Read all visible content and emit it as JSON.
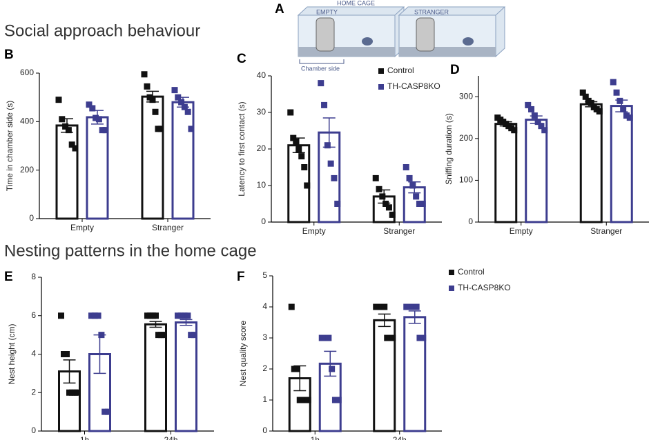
{
  "headings": [
    "Social approach behaviour",
    "Nesting patterns in the home cage"
  ],
  "diagram": {
    "panel": "A",
    "title": "HOME CAGE",
    "left": "EMPTY",
    "right": "STRANGER",
    "caption": "Chamber side"
  },
  "chart_data": [
    {
      "type": "bar",
      "panel": "B",
      "ylabel": "Time in chamber side (s)",
      "categories": [
        "Empty",
        "Stranger"
      ],
      "ylim": [
        0,
        600
      ],
      "yticks": [
        0,
        200,
        400,
        600
      ],
      "series": [
        {
          "color": "#111111",
          "values": [
            384,
            503
          ],
          "errors": [
            28,
            22
          ],
          "points": [
            [
              490,
              410,
              380,
              365,
              305,
              290
            ],
            [
              595,
              545,
              500,
              490,
              440,
              370,
              370
            ]
          ]
        },
        {
          "color": "#3d3d8f",
          "values": [
            418,
            480
          ],
          "errors": [
            28,
            20
          ],
          "points": [
            [
              470,
              455,
              415,
              410,
              365,
              365
            ],
            [
              530,
              500,
              480,
              460,
              440,
              370
            ]
          ]
        }
      ]
    },
    {
      "type": "bar",
      "panel": "C",
      "ylabel": "Latency to first contact (s)",
      "categories": [
        "Empty",
        "Stranger"
      ],
      "ylim": [
        0,
        40
      ],
      "yticks": [
        0,
        10,
        20,
        30,
        40
      ],
      "legend": true,
      "series": [
        {
          "name": "Control",
          "color": "#111111",
          "values": [
            21,
            7
          ],
          "errors": [
            2,
            1.8
          ],
          "points": [
            [
              30,
              23,
              22,
              20,
              18,
              15,
              10
            ],
            [
              12,
              9,
              7,
              5,
              4,
              2
            ]
          ]
        },
        {
          "name": "TH-CASP8KO",
          "color": "#3d3d8f",
          "values": [
            24.5,
            9.5
          ],
          "errors": [
            4,
            1.5
          ],
          "points": [
            [
              38,
              32,
              21,
              16,
              12,
              5
            ],
            [
              15,
              12,
              10,
              7,
              5,
              5
            ]
          ]
        }
      ]
    },
    {
      "type": "bar",
      "panel": "D",
      "ylabel": "Sniffing duration (s)",
      "categories": [
        "Empty",
        "Stranger"
      ],
      "ylim": [
        0,
        350
      ],
      "yticks": [
        0,
        100,
        200,
        300
      ],
      "series": [
        {
          "color": "#111111",
          "values": [
            235,
            282
          ],
          "errors": [
            5,
            6
          ],
          "points": [
            [
              250,
              245,
              240,
              235,
              230,
              225,
              220
            ],
            [
              310,
              300,
              290,
              285,
              275,
              270,
              265
            ]
          ]
        },
        {
          "color": "#3d3d8f",
          "values": [
            245,
            278
          ],
          "errors": [
            9,
            14
          ],
          "points": [
            [
              280,
              270,
              255,
              240,
              230,
              220
            ],
            [
              335,
              310,
              290,
              270,
              255,
              250
            ]
          ]
        }
      ]
    },
    {
      "type": "bar",
      "panel": "E",
      "ylabel": "Nest height (cm)",
      "categories": [
        "1h",
        "24h"
      ],
      "ylim": [
        0,
        8
      ],
      "yticks": [
        0,
        2,
        4,
        6,
        8
      ],
      "series": [
        {
          "color": "#111111",
          "values": [
            3.1,
            5.55
          ],
          "errors": [
            0.6,
            0.15
          ],
          "points": [
            [
              6,
              4,
              4,
              2,
              2,
              2,
              2
            ],
            [
              6,
              6,
              6,
              6,
              5,
              5,
              5
            ]
          ]
        },
        {
          "color": "#3d3d8f",
          "values": [
            4,
            5.65
          ],
          "errors": [
            1,
            0.15
          ],
          "points": [
            [
              6,
              6,
              6,
              5,
              1,
              1
            ],
            [
              6,
              6,
              6,
              6,
              5,
              5
            ]
          ]
        }
      ]
    },
    {
      "type": "bar",
      "panel": "F",
      "ylabel": "Nest  quality score",
      "categories": [
        "1h",
        "24h"
      ],
      "ylim": [
        0,
        5
      ],
      "yticks": [
        0,
        1,
        2,
        3,
        4,
        5
      ],
      "legend": true,
      "series": [
        {
          "name": "Control",
          "color": "#111111",
          "values": [
            1.7,
            3.57
          ],
          "errors": [
            0.4,
            0.2
          ],
          "points": [
            [
              4,
              2,
              2,
              1,
              1,
              1,
              1
            ],
            [
              4,
              4,
              4,
              4,
              3,
              3,
              3
            ]
          ]
        },
        {
          "name": "TH-CASP8KO",
          "color": "#3d3d8f",
          "values": [
            2.17,
            3.67
          ],
          "errors": [
            0.4,
            0.2
          ],
          "points": [
            [
              3,
              3,
              3,
              2,
              1,
              1
            ],
            [
              4,
              4,
              4,
              4,
              3,
              3
            ]
          ]
        }
      ]
    }
  ]
}
